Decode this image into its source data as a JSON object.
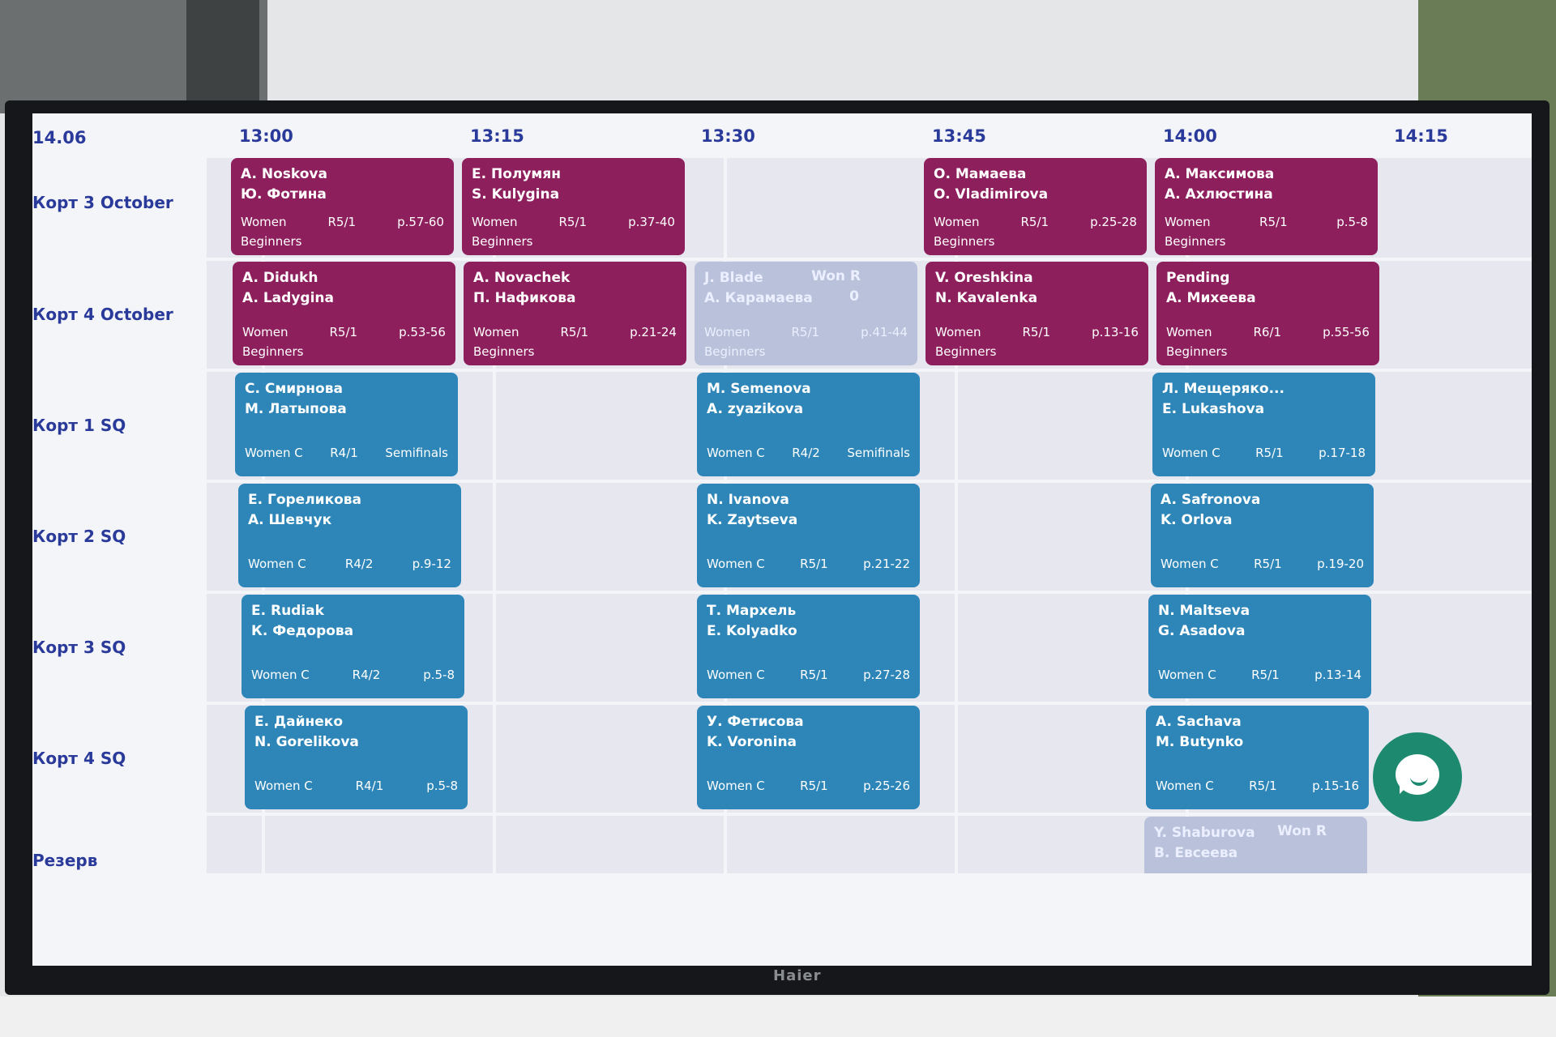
{
  "schedule": {
    "date": "14.06",
    "times": [
      "13:00",
      "13:15",
      "13:30",
      "13:45",
      "14:00",
      "14:15"
    ],
    "courts": [
      "Корт 3 October",
      "Корт 4 October",
      "Корт 1 SQ",
      "Корт 2 SQ",
      "Корт 3 SQ",
      "Корт 4 SQ",
      "Резерв"
    ],
    "matches": [
      {
        "p1": "A. Noskova",
        "p2": "Ю. Фотина",
        "category": "Women",
        "round": "R5/1",
        "pages": "p.57-60",
        "level": "Beginners"
      },
      {
        "p1": "Е. Полумян",
        "p2": "S. Kulygina",
        "category": "Women",
        "round": "R5/1",
        "pages": "p.37-40",
        "level": "Beginners"
      },
      {
        "p1": "О. Мамаева",
        "p2": "O. Vladimirova",
        "category": "Women",
        "round": "R5/1",
        "pages": "p.25-28",
        "level": "Beginners"
      },
      {
        "p1": "А. Максимова",
        "p2": "А. Ахлюстина",
        "category": "Women",
        "round": "R5/1",
        "pages": "p.5-8",
        "level": "Beginners"
      },
      {
        "p1": "A. Didukh",
        "p2": "A. Ladygina",
        "category": "Women",
        "round": "R5/1",
        "pages": "p.53-56",
        "level": "Beginners"
      },
      {
        "p1": "A. Novachek",
        "p2": "П. Нафикова",
        "category": "Women",
        "round": "R5/1",
        "pages": "p.21-24",
        "level": "Beginners"
      },
      {
        "p1": "J. Blade",
        "p2": "А. Карамаева",
        "category": "Women",
        "round": "R5/1",
        "pages": "p.41-44",
        "level": "Beginners",
        "won": "Won R",
        "score": "0"
      },
      {
        "p1": "V. Oreshkina",
        "p2": "N. Kavalenka",
        "category": "Women",
        "round": "R5/1",
        "pages": "p.13-16",
        "level": "Beginners"
      },
      {
        "p1": "Pending",
        "p2": "А. Михеева",
        "category": "Women",
        "round": "R6/1",
        "pages": "p.55-56",
        "level": "Beginners"
      },
      {
        "p1": "С. Смирнова",
        "p2": "М. Латыпова",
        "category": "Women C",
        "round": "R4/1",
        "pages": "Semifinals"
      },
      {
        "p1": "M. Semenova",
        "p2": "A. zyazikova",
        "category": "Women C",
        "round": "R4/2",
        "pages": "Semifinals"
      },
      {
        "p1": "Л. Мещеряко...",
        "p2": "E. Lukashova",
        "category": "Women C",
        "round": "R5/1",
        "pages": "p.17-18"
      },
      {
        "p1": "Е. Гореликова",
        "p2": "А. Шевчук",
        "category": "Women C",
        "round": "R4/2",
        "pages": "p.9-12"
      },
      {
        "p1": "N. Ivanova",
        "p2": "K. Zaytseva",
        "category": "Women C",
        "round": "R5/1",
        "pages": "p.21-22"
      },
      {
        "p1": "A. Safronova",
        "p2": "K. Orlova",
        "category": "Women C",
        "round": "R5/1",
        "pages": "p.19-20"
      },
      {
        "p1": "E. Rudiak",
        "p2": "К. Федорова",
        "category": "Women C",
        "round": "R4/2",
        "pages": "p.5-8"
      },
      {
        "p1": "Т. Мархель",
        "p2": "E. Kolyadko",
        "category": "Women C",
        "round": "R5/1",
        "pages": "p.27-28"
      },
      {
        "p1": "N. Maltseva",
        "p2": "G. Asadova",
        "category": "Women C",
        "round": "R5/1",
        "pages": "p.13-14"
      },
      {
        "p1": "Е. Дайнеко",
        "p2": "N. Gorelikova",
        "category": "Women C",
        "round": "R4/1",
        "pages": "p.5-8"
      },
      {
        "p1": "У. Фетисова",
        "p2": "K. Voronina",
        "category": "Women C",
        "round": "R5/1",
        "pages": "p.25-26"
      },
      {
        "p1": "A. Sachava",
        "p2": "M. Butynko",
        "category": "Women C",
        "round": "R5/1",
        "pages": "p.15-16"
      },
      {
        "p1": "Y. Shaburova",
        "p2": "В. Евсеева",
        "won": "Won R"
      }
    ]
  },
  "device": {
    "brand": "Haier"
  },
  "colors": {
    "magenta": "#8e1f5d",
    "blue": "#2e86b8",
    "dim": "#b9c2da",
    "label": "#2a3a9a",
    "chat": "#1d8a70"
  },
  "icons": {
    "chat": "chat-bubble-icon"
  }
}
